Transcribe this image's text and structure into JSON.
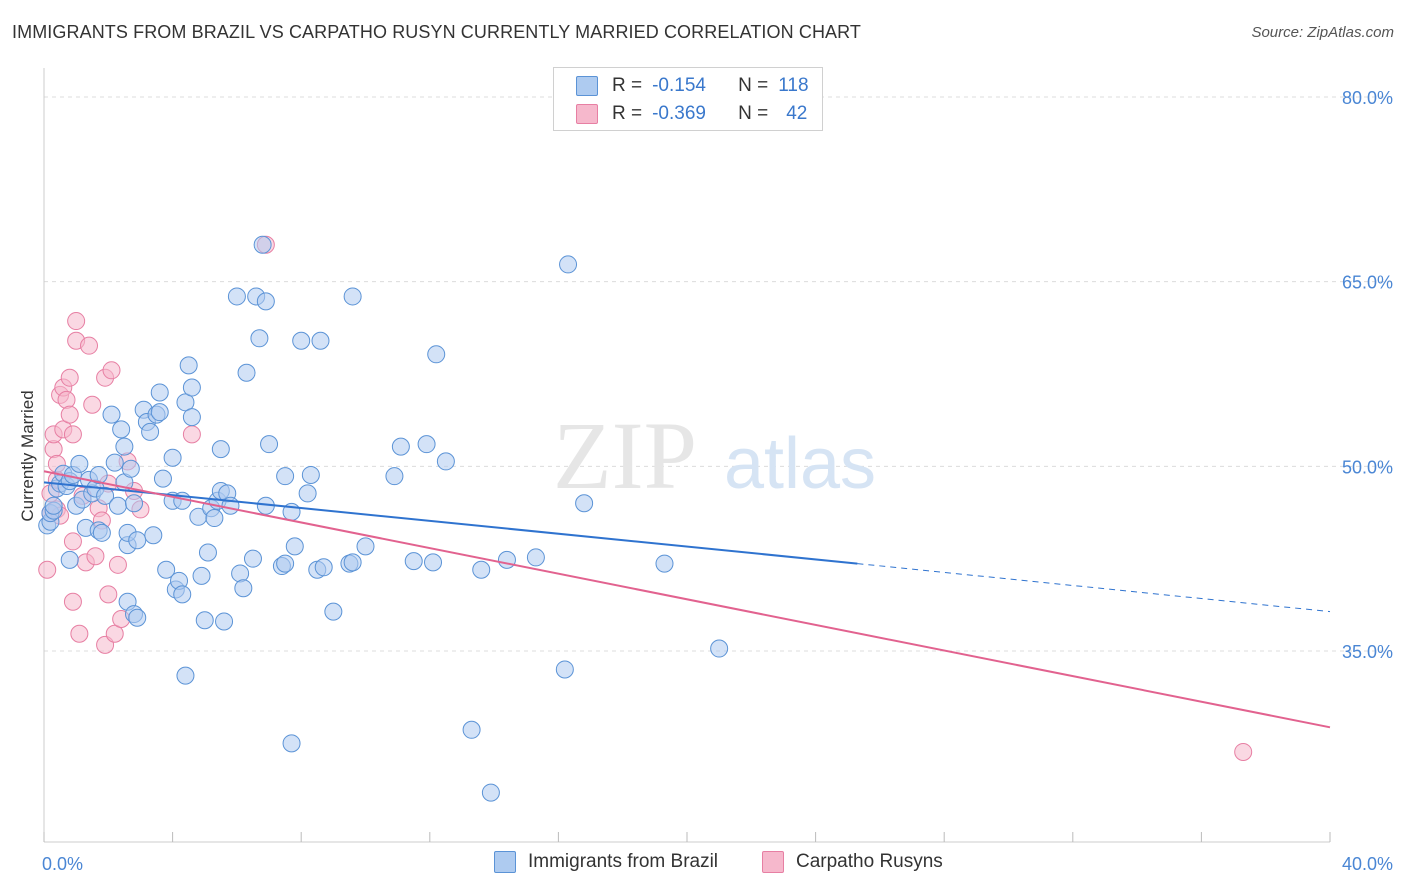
{
  "title": "IMMIGRANTS FROM BRAZIL VS CARPATHO RUSYN CURRENTLY MARRIED CORRELATION CHART",
  "source": "Source: ZipAtlas.com",
  "watermark_zip": "ZIP",
  "watermark_atlas": "atlas",
  "legend_top": {
    "r_label": "R =",
    "n_label": "N =",
    "rows": [
      {
        "r_value": "-0.154",
        "n_value": "118"
      },
      {
        "r_value": "-0.369",
        "n_value": "42"
      }
    ]
  },
  "colors": {
    "blue_fill": "#aecbf0",
    "blue_stroke": "#5b93d6",
    "blue_line": "#2f73cf",
    "pink_fill": "#f6b8cc",
    "pink_stroke": "#e77fa3",
    "pink_line": "#e2628f",
    "tick_text": "#4a86d4"
  },
  "chart_data": {
    "type": "scatter",
    "title": "IMMIGRANTS FROM BRAZIL VS CARPATHO RUSYN CURRENTLY MARRIED CORRELATION CHART",
    "xlabel": "",
    "ylabel": "Currently Married",
    "xlim": [
      0,
      40
    ],
    "ylim": [
      20,
      83
    ],
    "x_tick_labels": [
      "0.0%",
      "40.0%"
    ],
    "y_tick_labels": [
      "80.0%",
      "65.0%",
      "50.0%",
      "35.0%"
    ],
    "y_ticks": [
      80,
      65,
      50,
      35
    ],
    "grid": true,
    "series": [
      {
        "name": "Immigrants from Brazil",
        "color": "#aecbf0",
        "R": -0.154,
        "N": 118,
        "trend": {
          "x": [
            0,
            25.3
          ],
          "y": [
            48.7,
            42.1
          ]
        },
        "trend_dashed": {
          "x": [
            25.3,
            40
          ],
          "y": [
            42.1,
            38.2
          ]
        },
        "points": [
          [
            0.1,
            45.2
          ],
          [
            0.2,
            45.5
          ],
          [
            0.2,
            46.2
          ],
          [
            0.3,
            46.4
          ],
          [
            0.3,
            46.8
          ],
          [
            0.4,
            48.2
          ],
          [
            0.5,
            48.6
          ],
          [
            0.6,
            49.4
          ],
          [
            0.7,
            48.4
          ],
          [
            0.8,
            48.8
          ],
          [
            0.8,
            42.4
          ],
          [
            0.9,
            49.3
          ],
          [
            1.0,
            46.8
          ],
          [
            1.1,
            50.2
          ],
          [
            1.2,
            47.3
          ],
          [
            1.3,
            45.0
          ],
          [
            1.4,
            48.9
          ],
          [
            1.5,
            47.8
          ],
          [
            1.6,
            48.2
          ],
          [
            1.7,
            49.3
          ],
          [
            1.7,
            44.8
          ],
          [
            1.8,
            44.6
          ],
          [
            1.9,
            47.6
          ],
          [
            2.1,
            54.2
          ],
          [
            2.2,
            50.3
          ],
          [
            2.3,
            46.8
          ],
          [
            2.4,
            53.0
          ],
          [
            2.5,
            48.7
          ],
          [
            2.5,
            51.6
          ],
          [
            2.6,
            43.6
          ],
          [
            2.6,
            39.0
          ],
          [
            2.6,
            44.6
          ],
          [
            2.7,
            49.8
          ],
          [
            2.8,
            38.0
          ],
          [
            2.8,
            47.0
          ],
          [
            2.9,
            44.0
          ],
          [
            2.9,
            37.7
          ],
          [
            3.1,
            54.6
          ],
          [
            3.2,
            53.6
          ],
          [
            3.3,
            52.8
          ],
          [
            3.4,
            44.4
          ],
          [
            3.5,
            54.2
          ],
          [
            3.6,
            54.4
          ],
          [
            3.6,
            56.0
          ],
          [
            3.7,
            49.0
          ],
          [
            3.8,
            41.6
          ],
          [
            4.0,
            47.2
          ],
          [
            4.0,
            50.7
          ],
          [
            4.1,
            40.0
          ],
          [
            4.2,
            40.7
          ],
          [
            4.3,
            47.2
          ],
          [
            4.3,
            39.6
          ],
          [
            4.4,
            33.0
          ],
          [
            4.4,
            55.2
          ],
          [
            4.5,
            58.2
          ],
          [
            4.6,
            54.0
          ],
          [
            4.6,
            56.4
          ],
          [
            4.8,
            45.9
          ],
          [
            4.9,
            41.1
          ],
          [
            5.0,
            37.5
          ],
          [
            5.1,
            43.0
          ],
          [
            5.2,
            46.6
          ],
          [
            5.3,
            45.8
          ],
          [
            5.4,
            47.2
          ],
          [
            5.5,
            51.4
          ],
          [
            5.5,
            48.0
          ],
          [
            5.6,
            37.4
          ],
          [
            5.7,
            47.8
          ],
          [
            5.8,
            46.8
          ],
          [
            6.0,
            63.8
          ],
          [
            6.1,
            41.3
          ],
          [
            6.2,
            40.1
          ],
          [
            6.3,
            57.6
          ],
          [
            6.5,
            42.5
          ],
          [
            6.6,
            63.8
          ],
          [
            6.7,
            60.4
          ],
          [
            6.8,
            68.0
          ],
          [
            6.9,
            46.8
          ],
          [
            6.9,
            63.4
          ],
          [
            7.0,
            51.8
          ],
          [
            7.4,
            41.9
          ],
          [
            7.5,
            42.1
          ],
          [
            7.5,
            49.2
          ],
          [
            7.7,
            46.3
          ],
          [
            7.8,
            43.5
          ],
          [
            8.0,
            60.2
          ],
          [
            8.2,
            47.8
          ],
          [
            8.3,
            49.3
          ],
          [
            8.5,
            41.6
          ],
          [
            8.6,
            60.2
          ],
          [
            8.7,
            41.8
          ],
          [
            9.0,
            38.2
          ],
          [
            9.5,
            42.1
          ],
          [
            9.6,
            42.2
          ],
          [
            9.6,
            63.8
          ],
          [
            10.0,
            43.5
          ],
          [
            10.9,
            49.2
          ],
          [
            11.1,
            51.6
          ],
          [
            11.5,
            42.3
          ],
          [
            11.9,
            51.8
          ],
          [
            12.1,
            42.2
          ],
          [
            12.2,
            59.1
          ],
          [
            12.5,
            50.4
          ],
          [
            13.3,
            28.6
          ],
          [
            13.6,
            41.6
          ],
          [
            13.9,
            23.5
          ],
          [
            14.4,
            42.4
          ],
          [
            15.3,
            42.6
          ],
          [
            16.2,
            33.5
          ],
          [
            16.3,
            66.4
          ],
          [
            16.8,
            47.0
          ],
          [
            19.3,
            42.1
          ],
          [
            21.0,
            35.2
          ],
          [
            7.7,
            27.5
          ]
        ]
      },
      {
        "name": "Carpatho Rusyns",
        "color": "#f6b8cc",
        "R": -0.369,
        "N": 42,
        "trend": {
          "x": [
            0,
            40
          ],
          "y": [
            49.6,
            28.8
          ]
        },
        "points": [
          [
            0.1,
            41.6
          ],
          [
            0.2,
            46.2
          ],
          [
            0.2,
            47.8
          ],
          [
            0.3,
            51.4
          ],
          [
            0.3,
            52.6
          ],
          [
            0.4,
            48.9
          ],
          [
            0.4,
            50.2
          ],
          [
            0.4,
            46.5
          ],
          [
            0.5,
            46.0
          ],
          [
            0.5,
            55.8
          ],
          [
            0.6,
            56.4
          ],
          [
            0.6,
            53.0
          ],
          [
            0.7,
            55.4
          ],
          [
            0.8,
            57.2
          ],
          [
            0.8,
            54.2
          ],
          [
            0.9,
            52.6
          ],
          [
            0.9,
            43.9
          ],
          [
            0.9,
            39.0
          ],
          [
            1.0,
            60.2
          ],
          [
            1.0,
            61.8
          ],
          [
            1.1,
            36.4
          ],
          [
            1.2,
            47.6
          ],
          [
            1.3,
            42.2
          ],
          [
            1.4,
            59.8
          ],
          [
            1.5,
            55.0
          ],
          [
            1.6,
            42.7
          ],
          [
            1.7,
            46.6
          ],
          [
            1.8,
            45.6
          ],
          [
            1.9,
            57.2
          ],
          [
            1.9,
            35.5
          ],
          [
            2.0,
            39.6
          ],
          [
            2.0,
            48.6
          ],
          [
            2.1,
            57.8
          ],
          [
            2.2,
            36.4
          ],
          [
            2.3,
            42.0
          ],
          [
            2.4,
            37.6
          ],
          [
            2.6,
            50.4
          ],
          [
            2.8,
            48.0
          ],
          [
            3.0,
            46.5
          ],
          [
            4.6,
            52.6
          ],
          [
            6.9,
            68.0
          ],
          [
            37.3,
            26.8
          ]
        ]
      }
    ]
  },
  "bottom_legend": [
    {
      "label": "Immigrants from Brazil"
    },
    {
      "label": "Carpatho Rusyns"
    }
  ]
}
